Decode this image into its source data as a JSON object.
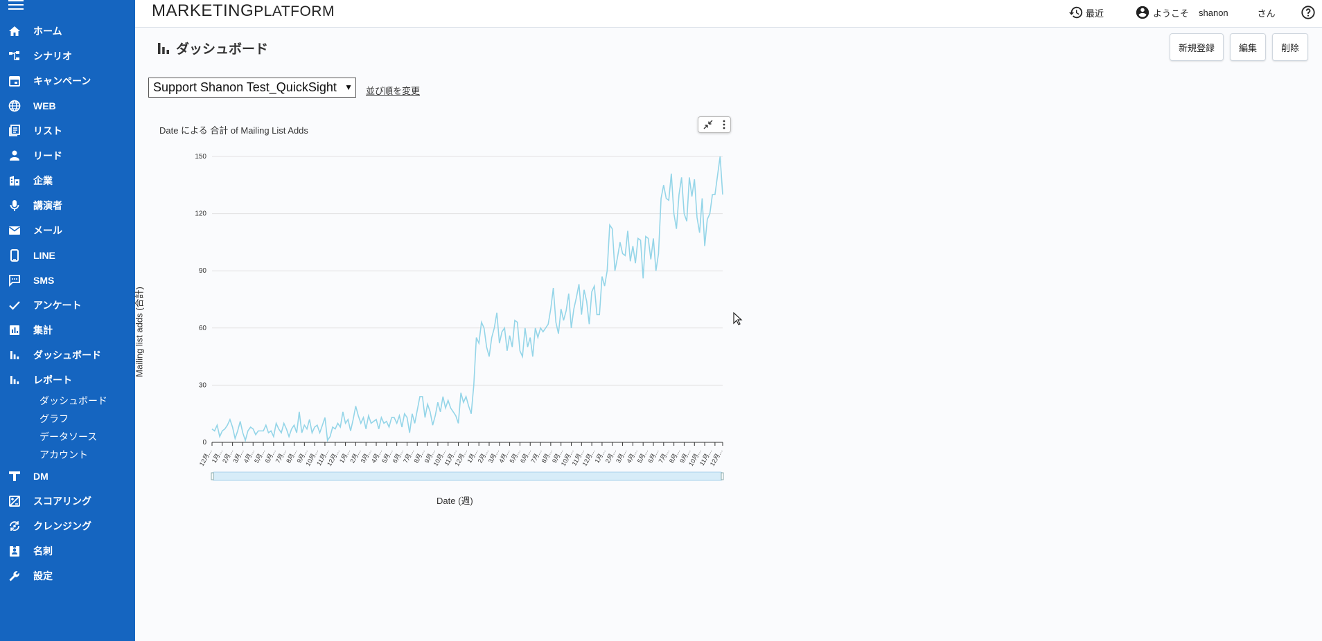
{
  "sidebar": {
    "items": [
      {
        "label": "ホーム",
        "icon": "home-icon"
      },
      {
        "label": "シナリオ",
        "icon": "scenario-icon"
      },
      {
        "label": "キャンペーン",
        "icon": "calendar-icon"
      },
      {
        "label": "WEB",
        "icon": "globe-icon"
      },
      {
        "label": "リスト",
        "icon": "list-icon"
      },
      {
        "label": "リード",
        "icon": "person-icon"
      },
      {
        "label": "企業",
        "icon": "building-icon"
      },
      {
        "label": "講演者",
        "icon": "microphone-icon"
      },
      {
        "label": "メール",
        "icon": "mail-icon"
      },
      {
        "label": "LINE",
        "icon": "phone-icon"
      },
      {
        "label": "SMS",
        "icon": "sms-icon"
      },
      {
        "label": "アンケート",
        "icon": "check-icon"
      },
      {
        "label": "集計",
        "icon": "chart-box-icon"
      },
      {
        "label": "ダッシュボード",
        "icon": "bar-chart-icon"
      },
      {
        "label": "レポート",
        "icon": "bar-chart-icon"
      }
    ],
    "sub_items": [
      "ダッシュボード",
      "グラフ",
      "データソース",
      "アカウント"
    ],
    "items_after": [
      {
        "label": "DM",
        "icon": "dm-icon"
      },
      {
        "label": "スコアリング",
        "icon": "scoring-icon"
      },
      {
        "label": "クレンジング",
        "icon": "cleansing-icon"
      },
      {
        "label": "名刺",
        "icon": "card-icon"
      },
      {
        "label": "設定",
        "icon": "wrench-icon"
      }
    ]
  },
  "header": {
    "logo_main": "MARKETING",
    "logo_sub": "PLATFORM",
    "recent": "最近",
    "welcome": "ようこそ",
    "user": "shanon",
    "honorific": "さん"
  },
  "page": {
    "title": "ダッシュボード",
    "buttons": {
      "new": "新規登録",
      "edit": "編集",
      "delete": "削除"
    },
    "select_value": "Support Shanon Test_QuickSight",
    "sort_link": "並び順を変更"
  },
  "colors": {
    "sidebar": "#1565c0",
    "line": "#94d5e8"
  },
  "chart_data": {
    "type": "line",
    "title": "Date による 合計 of Mailing List Adds",
    "xlabel": "Date (週)",
    "ylabel": "Mailing list adds (合計)",
    "ylim": [
      0,
      150
    ],
    "yticks": [
      0,
      30,
      60,
      90,
      120,
      150
    ],
    "xtick_labels": [
      "12月...",
      "1月...",
      "2月...",
      "3月...",
      "4月...",
      "5月...",
      "6月...",
      "7月...",
      "8月...",
      "9月...",
      "10月...",
      "11月...",
      "12月...",
      "1月...",
      "2月...",
      "3月...",
      "4月...",
      "5月...",
      "6月...",
      "7月...",
      "8月...",
      "9月...",
      "10月...",
      "11月...",
      "12月...",
      "1月...",
      "2月...",
      "3月...",
      "4月...",
      "5月...",
      "6月...",
      "7月...",
      "8月...",
      "9月...",
      "10月...",
      "11月...",
      "12月...",
      "1月...",
      "2月...",
      "3月...",
      "4月...",
      "5月...",
      "6月...",
      "7月...",
      "8月...",
      "9月...",
      "10月...",
      "11月...",
      "12月..."
    ],
    "values": [
      7,
      6,
      9,
      3,
      6,
      7,
      9,
      12,
      8,
      2,
      6,
      11,
      5,
      1,
      6,
      8,
      7,
      4,
      6,
      6,
      6,
      9,
      5,
      6,
      3,
      10,
      7,
      5,
      10,
      7,
      3,
      7,
      9,
      5,
      16,
      5,
      9,
      7,
      12,
      5,
      8,
      9,
      5,
      9,
      13,
      1,
      3,
      8,
      7,
      10,
      8,
      16,
      10,
      12,
      6,
      12,
      19,
      14,
      10,
      13,
      7,
      14,
      10,
      11,
      12,
      7,
      13,
      10,
      11,
      8,
      13,
      13,
      10,
      14,
      8,
      15,
      13,
      5,
      15,
      10,
      17,
      24,
      24,
      13,
      20,
      16,
      9,
      14,
      21,
      16,
      24,
      18,
      22,
      18,
      16,
      14,
      10,
      26,
      21,
      24,
      19,
      15,
      30,
      55,
      52,
      63,
      60,
      50,
      45,
      55,
      60,
      68,
      52,
      58,
      60,
      48,
      56,
      50,
      64,
      63,
      48,
      45,
      60,
      50,
      55,
      45,
      60,
      55,
      60,
      58,
      60,
      62,
      70,
      81,
      63,
      57,
      70,
      64,
      69,
      78,
      60,
      70,
      76,
      83,
      67,
      80,
      74,
      62,
      79,
      82,
      67,
      67,
      87,
      82,
      90,
      114,
      112,
      90,
      97,
      105,
      99,
      98,
      111,
      95,
      103,
      94,
      107,
      106,
      86,
      108,
      107,
      96,
      107,
      90,
      99,
      128,
      135,
      128,
      127,
      141,
      120,
      112,
      130,
      139,
      120,
      116,
      139,
      129,
      138,
      118,
      110,
      128,
      103,
      117,
      120,
      130,
      130,
      140,
      150,
      130
    ]
  }
}
